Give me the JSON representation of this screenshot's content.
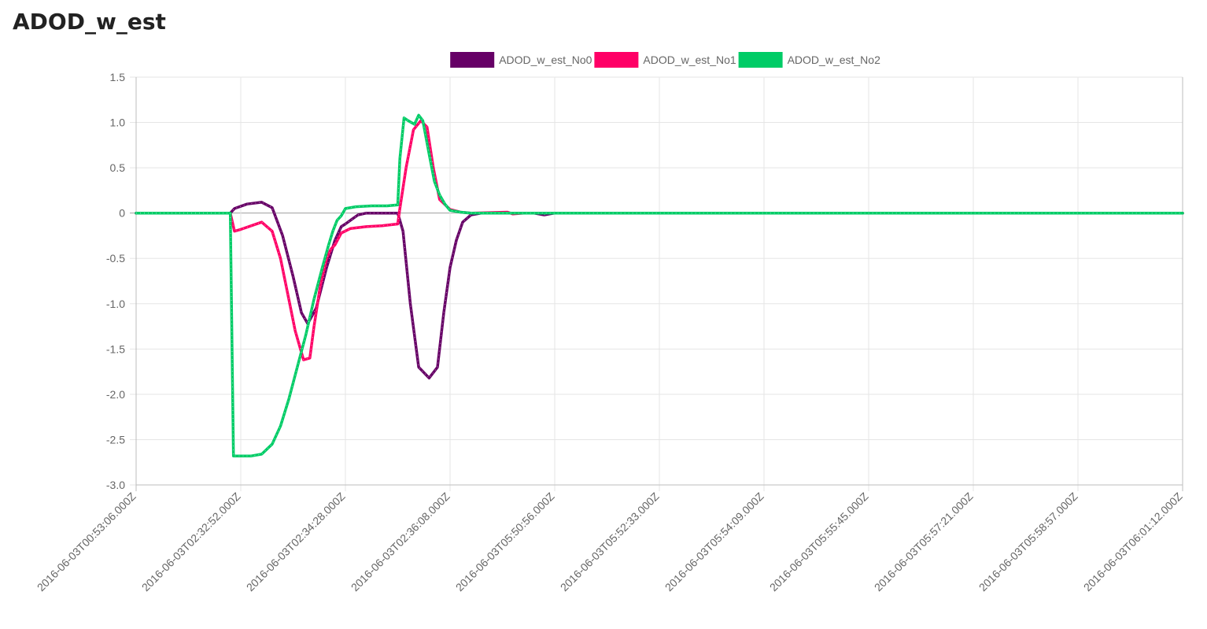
{
  "page": {
    "title": "ADOD_w_est"
  },
  "chart_data": {
    "type": "line",
    "title": "",
    "xlabel": "",
    "ylabel": "",
    "ylim": [
      -3.0,
      1.5
    ],
    "yticks": [
      "1.5",
      "1.0",
      "0.5",
      "0",
      "-0.5",
      "-1.0",
      "-1.5",
      "-2.0",
      "-2.5",
      "-3.0"
    ],
    "ytick_values": [
      1.5,
      1.0,
      0.5,
      0,
      -0.5,
      -1.0,
      -1.5,
      -2.0,
      -2.5,
      -3.0
    ],
    "xticks": [
      "2016-06-03T00:53:06.000Z",
      "2016-06-03T02:32:52.000Z",
      "2016-06-03T02:34:28.000Z",
      "2016-06-03T02:36:08.000Z",
      "2016-06-03T05:50:56.000Z",
      "2016-06-03T05:52:33.000Z",
      "2016-06-03T05:54:09.000Z",
      "2016-06-03T05:55:45.000Z",
      "2016-06-03T05:57:21.000Z",
      "2016-06-03T05:58:57.000Z",
      "2016-06-03T06:01:12.000Z"
    ],
    "grid": true,
    "legend_position": "top",
    "series": [
      {
        "name": "ADOD_w_est_No0",
        "color": "#660066",
        "points": [
          [
            0,
            0
          ],
          [
            0.9,
            0
          ],
          [
            0.94,
            0.05
          ],
          [
            1.06,
            0.1
          ],
          [
            1.2,
            0.12
          ],
          [
            1.3,
            0.06
          ],
          [
            1.4,
            -0.25
          ],
          [
            1.5,
            -0.7
          ],
          [
            1.58,
            -1.1
          ],
          [
            1.64,
            -1.22
          ],
          [
            1.72,
            -1.05
          ],
          [
            1.82,
            -0.6
          ],
          [
            1.9,
            -0.3
          ],
          [
            1.96,
            -0.15
          ],
          [
            2.0,
            -0.12
          ],
          [
            2.06,
            -0.07
          ],
          [
            2.12,
            -0.02
          ],
          [
            2.2,
            0
          ],
          [
            2.35,
            0
          ],
          [
            2.5,
            0
          ],
          [
            2.55,
            -0.2
          ],
          [
            2.62,
            -1.0
          ],
          [
            2.7,
            -1.7
          ],
          [
            2.8,
            -1.82
          ],
          [
            2.88,
            -1.7
          ],
          [
            2.94,
            -1.1
          ],
          [
            3.0,
            -0.6
          ],
          [
            3.06,
            -0.3
          ],
          [
            3.12,
            -0.1
          ],
          [
            3.2,
            -0.02
          ],
          [
            3.3,
            0
          ],
          [
            3.8,
            0
          ],
          [
            3.9,
            -0.02
          ],
          [
            3.95,
            -0.01
          ],
          [
            4.0,
            0
          ],
          [
            10.0,
            0
          ]
        ]
      },
      {
        "name": "ADOD_w_est_No1",
        "color": "#ff0066",
        "points": [
          [
            0,
            0
          ],
          [
            0.9,
            0
          ],
          [
            0.94,
            -0.2
          ],
          [
            1.0,
            -0.18
          ],
          [
            1.2,
            -0.1
          ],
          [
            1.3,
            -0.2
          ],
          [
            1.38,
            -0.5
          ],
          [
            1.45,
            -0.9
          ],
          [
            1.52,
            -1.3
          ],
          [
            1.6,
            -1.62
          ],
          [
            1.66,
            -1.6
          ],
          [
            1.7,
            -1.25
          ],
          [
            1.76,
            -0.8
          ],
          [
            1.82,
            -0.5
          ],
          [
            1.86,
            -0.4
          ],
          [
            1.9,
            -0.35
          ],
          [
            1.96,
            -0.22
          ],
          [
            2.05,
            -0.17
          ],
          [
            2.2,
            -0.15
          ],
          [
            2.35,
            -0.14
          ],
          [
            2.5,
            -0.12
          ],
          [
            2.52,
            0.05
          ],
          [
            2.58,
            0.5
          ],
          [
            2.65,
            0.92
          ],
          [
            2.72,
            1.02
          ],
          [
            2.78,
            0.95
          ],
          [
            2.84,
            0.5
          ],
          [
            2.9,
            0.15
          ],
          [
            3.0,
            0.04
          ],
          [
            3.1,
            0.01
          ],
          [
            3.2,
            0
          ],
          [
            3.55,
            0.01
          ],
          [
            3.6,
            -0.01
          ],
          [
            3.7,
            0
          ],
          [
            10.0,
            0
          ]
        ]
      },
      {
        "name": "ADOD_w_est_No2",
        "color": "#00cc66",
        "points": [
          [
            0,
            0
          ],
          [
            0.9,
            0
          ],
          [
            0.93,
            -2.68
          ],
          [
            1.0,
            -2.68
          ],
          [
            1.1,
            -2.68
          ],
          [
            1.2,
            -2.66
          ],
          [
            1.3,
            -2.55
          ],
          [
            1.38,
            -2.35
          ],
          [
            1.46,
            -2.05
          ],
          [
            1.54,
            -1.7
          ],
          [
            1.62,
            -1.35
          ],
          [
            1.7,
            -0.95
          ],
          [
            1.78,
            -0.6
          ],
          [
            1.84,
            -0.35
          ],
          [
            1.88,
            -0.2
          ],
          [
            1.92,
            -0.08
          ],
          [
            1.96,
            -0.03
          ],
          [
            2.0,
            0.05
          ],
          [
            2.1,
            0.07
          ],
          [
            2.25,
            0.08
          ],
          [
            2.4,
            0.08
          ],
          [
            2.5,
            0.09
          ],
          [
            2.52,
            0.6
          ],
          [
            2.56,
            1.05
          ],
          [
            2.6,
            1.02
          ],
          [
            2.66,
            0.98
          ],
          [
            2.7,
            1.08
          ],
          [
            2.74,
            1.02
          ],
          [
            2.8,
            0.65
          ],
          [
            2.85,
            0.35
          ],
          [
            2.9,
            0.2
          ],
          [
            2.95,
            0.1
          ],
          [
            3.0,
            0.03
          ],
          [
            3.1,
            0.01
          ],
          [
            3.2,
            0
          ],
          [
            10.0,
            0
          ]
        ]
      }
    ]
  }
}
